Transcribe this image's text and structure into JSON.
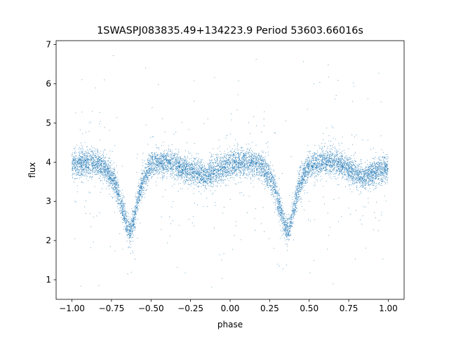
{
  "colors": {
    "points": "#1f77b4",
    "axes": "#000000",
    "background": "#ffffff"
  },
  "chart_data": {
    "type": "scatter",
    "title": "1SWASPJ083835.49+134223.9 Period 53603.66016s",
    "xlabel": "phase",
    "ylabel": "flux",
    "xlim": [
      -1.1,
      1.1
    ],
    "ylim": [
      0.5,
      7.1
    ],
    "x_ticks": [
      -1.0,
      -0.75,
      -0.5,
      -0.25,
      0.0,
      0.25,
      0.5,
      0.75,
      1.0
    ],
    "x_tick_labels": [
      "−1.00",
      "−0.75",
      "−0.50",
      "−0.25",
      "0.00",
      "0.25",
      "0.50",
      "0.75",
      "1.00"
    ],
    "y_ticks": [
      1,
      2,
      3,
      4,
      5,
      6,
      7
    ],
    "y_tick_labels": [
      "1",
      "2",
      "3",
      "4",
      "5",
      "6",
      "7"
    ],
    "grid": false,
    "legend": "none",
    "series": [
      {
        "description_curve_x": [
          -1.0,
          -0.9,
          -0.8,
          -0.72,
          -0.68,
          -0.65,
          -0.63,
          -0.6,
          -0.56,
          -0.5,
          -0.4,
          -0.3,
          -0.2,
          -0.15,
          -0.1,
          0.0,
          0.1,
          0.2,
          0.28,
          0.32,
          0.35,
          0.37,
          0.4,
          0.44,
          0.5,
          0.6,
          0.7,
          0.8,
          0.85,
          0.9,
          1.0
        ],
        "description_curve_y": [
          3.95,
          4.0,
          3.9,
          3.4,
          2.8,
          2.35,
          2.25,
          2.7,
          3.4,
          3.95,
          4.0,
          3.85,
          3.7,
          3.65,
          3.75,
          3.95,
          4.0,
          3.9,
          3.4,
          2.75,
          2.3,
          2.25,
          2.75,
          3.45,
          3.9,
          4.0,
          3.95,
          3.7,
          3.65,
          3.7,
          3.85
        ]
      }
    ]
  }
}
